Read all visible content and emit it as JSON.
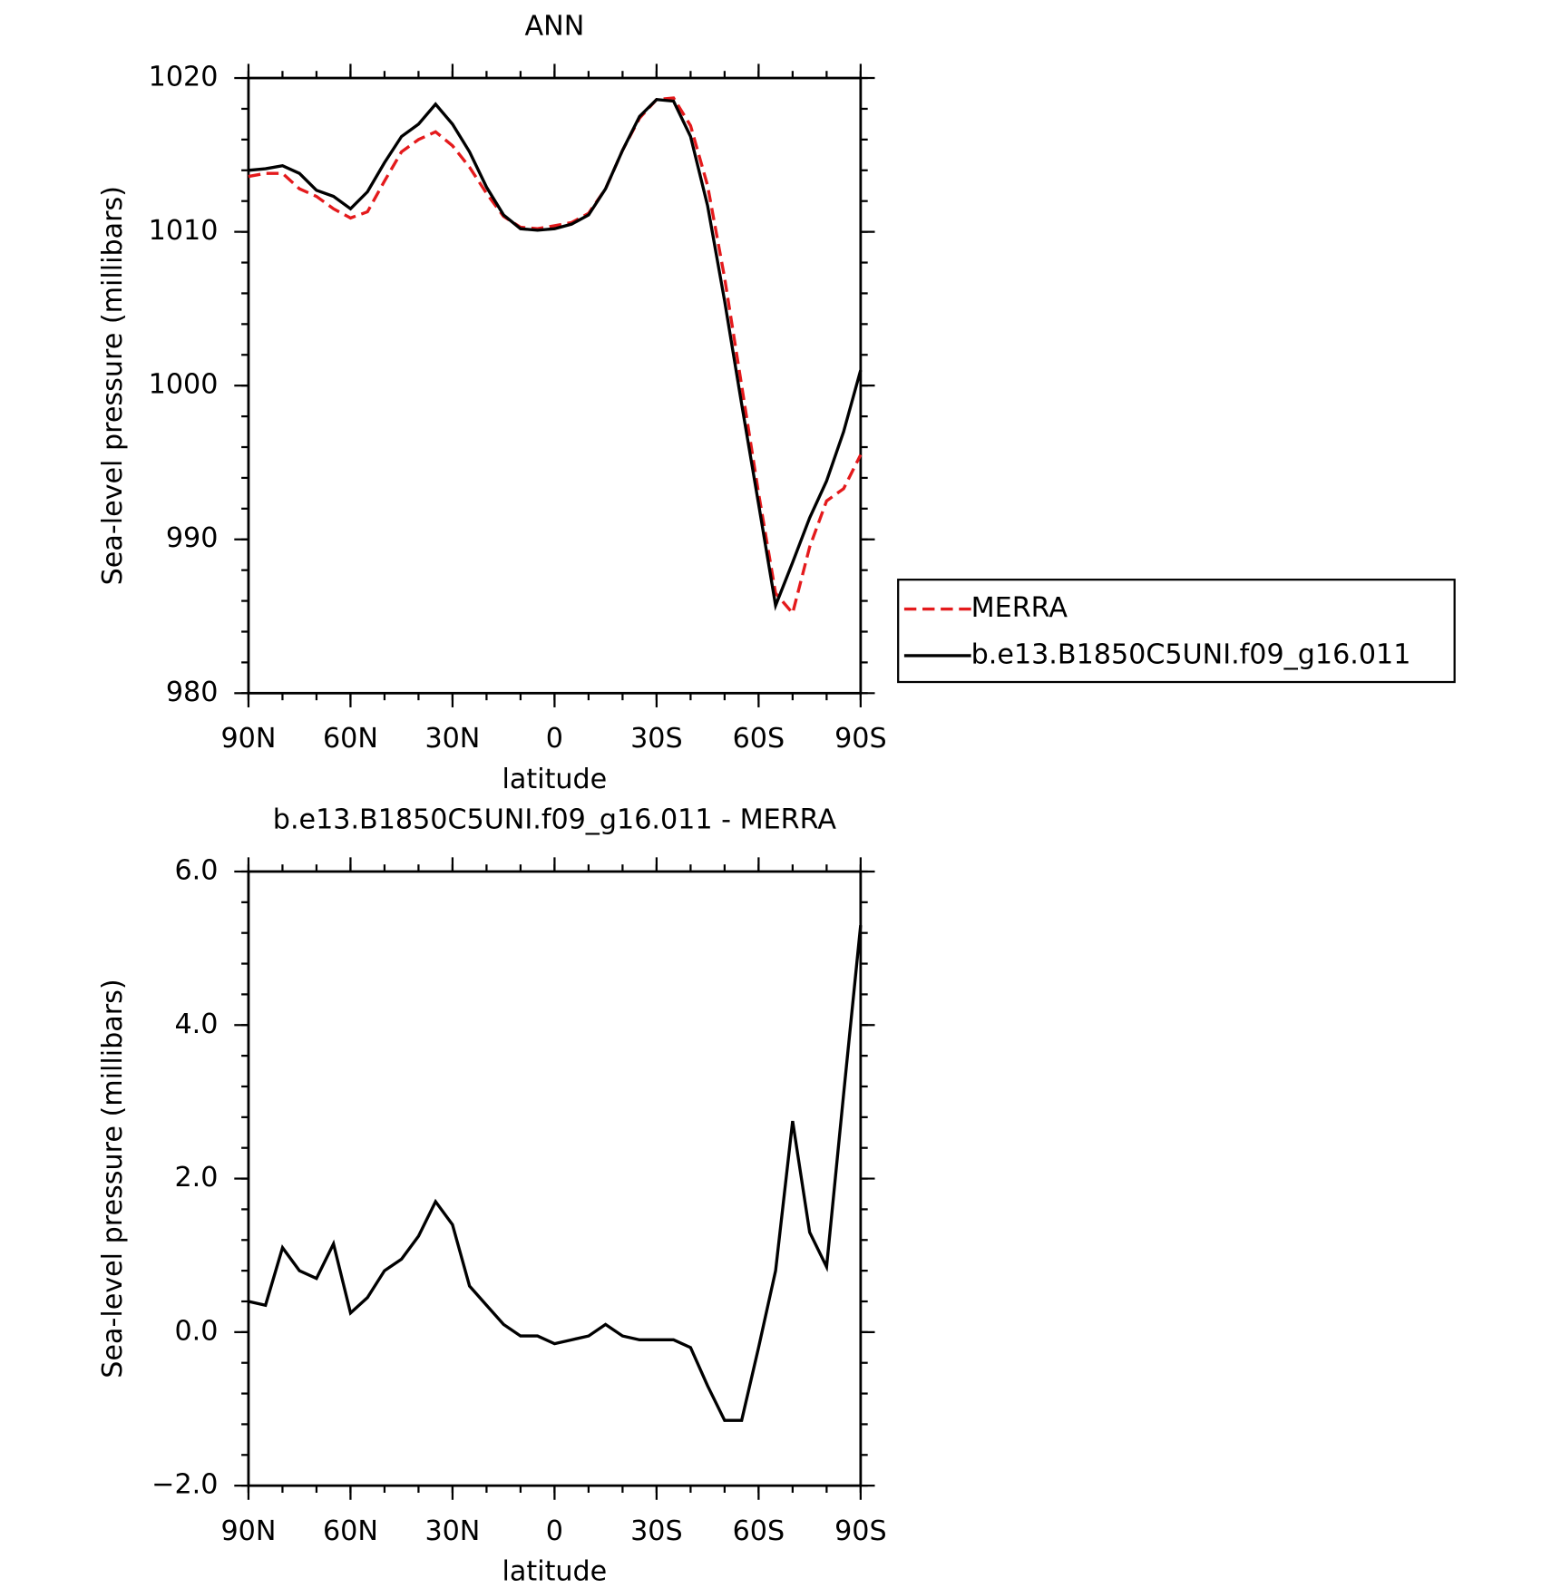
{
  "chart_data": [
    {
      "type": "line",
      "title": "ANN",
      "xlabel": "latitude",
      "ylabel": "Sea-level pressure (millibars)",
      "x": [
        90,
        85,
        80,
        75,
        70,
        65,
        60,
        55,
        50,
        45,
        40,
        35,
        30,
        25,
        20,
        15,
        10,
        5,
        0,
        -5,
        -10,
        -15,
        -20,
        -25,
        -30,
        -35,
        -40,
        -45,
        -50,
        -55,
        -60,
        -65,
        -70,
        -75,
        -80,
        -85,
        -90
      ],
      "xlim": [
        90,
        -90
      ],
      "xticks": [
        {
          "value": 90,
          "label": "90N"
        },
        {
          "value": 60,
          "label": "60N"
        },
        {
          "value": 30,
          "label": "30N"
        },
        0,
        {
          "value": -30,
          "label": "30S"
        },
        {
          "value": -60,
          "label": "60S"
        },
        {
          "value": -90,
          "label": "90S"
        }
      ],
      "ylim": [
        980,
        1020
      ],
      "yticks": [
        980,
        990,
        1000,
        1010,
        1020
      ],
      "series": [
        {
          "name": "MERRA",
          "color": "#e41a1c",
          "dashed": true,
          "values": [
            1013.6,
            1013.8,
            1013.8,
            1012.8,
            1012.3,
            1011.5,
            1010.9,
            1011.3,
            1013.3,
            1015.2,
            1016.0,
            1016.5,
            1015.6,
            1014.2,
            1012.5,
            1011.0,
            1010.3,
            1010.2,
            1010.4,
            1010.6,
            1011.2,
            1012.8,
            1015.3,
            1017.4,
            1018.6,
            1018.7,
            1016.9,
            1013.0,
            1007.0,
            1000.0,
            993.0,
            986.5,
            985.2,
            989.5,
            992.5,
            993.3,
            995.5
          ]
        },
        {
          "name": "b.e13.B1850C5UNI.f09_g16.011",
          "color": "#000000",
          "dashed": false,
          "values": [
            1014.0,
            1014.1,
            1014.3,
            1013.8,
            1012.7,
            1012.3,
            1011.5,
            1012.6,
            1014.5,
            1016.2,
            1017.0,
            1018.3,
            1017.0,
            1015.2,
            1012.9,
            1011.1,
            1010.2,
            1010.1,
            1010.2,
            1010.5,
            1011.1,
            1012.8,
            1015.3,
            1017.5,
            1018.6,
            1018.5,
            1016.2,
            1011.7,
            1005.5,
            998.8,
            992.3,
            985.7,
            988.5,
            991.4,
            993.8,
            997.0,
            1001.0
          ]
        }
      ]
    },
    {
      "type": "line",
      "title": "b.e13.B1850C5UNI.f09_g16.011 - MERRA",
      "xlabel": "latitude",
      "ylabel": "Sea-level pressure (millibars)",
      "x": [
        90,
        85,
        80,
        75,
        70,
        65,
        60,
        55,
        50,
        45,
        40,
        35,
        30,
        25,
        20,
        15,
        10,
        5,
        0,
        -5,
        -10,
        -15,
        -20,
        -25,
        -30,
        -35,
        -40,
        -45,
        -50,
        -55,
        -60,
        -65,
        -70,
        -75,
        -80,
        -85,
        -90
      ],
      "xlim": [
        90,
        -90
      ],
      "xticks": [
        {
          "value": 90,
          "label": "90N"
        },
        {
          "value": 60,
          "label": "60N"
        },
        {
          "value": 30,
          "label": "30N"
        },
        0,
        {
          "value": -30,
          "label": "30S"
        },
        {
          "value": -60,
          "label": "60S"
        },
        {
          "value": -90,
          "label": "90S"
        }
      ],
      "ylim": [
        -2,
        6
      ],
      "yticks": [
        {
          "value": -2,
          "label": "−2.0"
        },
        {
          "value": 0,
          "label": "0.0"
        },
        {
          "value": 2,
          "label": "2.0"
        },
        {
          "value": 4,
          "label": "4.0"
        },
        {
          "value": 6,
          "label": "6.0"
        }
      ],
      "series": [
        {
          "color": "#000000",
          "dashed": false,
          "values": [
            0.4,
            0.35,
            1.1,
            0.8,
            0.7,
            1.15,
            0.25,
            0.45,
            0.8,
            0.95,
            1.25,
            1.7,
            1.4,
            0.6,
            0.35,
            0.1,
            -0.05,
            -0.05,
            -0.15,
            -0.1,
            -0.05,
            0.1,
            -0.05,
            -0.1,
            -0.1,
            -0.1,
            -0.2,
            -0.7,
            -1.15,
            -1.15,
            -0.2,
            0.8,
            2.75,
            1.3,
            0.85,
            3.1,
            5.3
          ]
        }
      ]
    }
  ]
}
